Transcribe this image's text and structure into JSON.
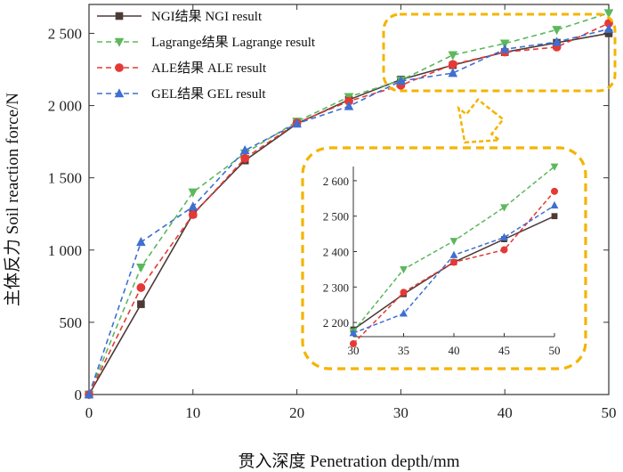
{
  "chart_data": {
    "type": "line",
    "xlabel": "贯入深度 Penetration depth/mm",
    "ylabel": "主体反力 Soil reaction force/N",
    "xlim": [
      0,
      50
    ],
    "ylim": [
      0,
      2700
    ],
    "x_ticks": [
      "0",
      "10",
      "20",
      "30",
      "40",
      "50"
    ],
    "y_ticks": [
      "0",
      "500",
      "1 000",
      "1 500",
      "2 000",
      "2 500"
    ],
    "legend_position": "top-left",
    "x": [
      0,
      5,
      10,
      15,
      20,
      25,
      30,
      35,
      40,
      45,
      50
    ],
    "series": [
      {
        "name": "NGI结果 NGI result",
        "color": "#4d3a36",
        "marker": "square",
        "dash": "solid",
        "values": [
          0,
          625,
          1250,
          1620,
          1875,
          2040,
          2180,
          2280,
          2370,
          2435,
          2500
        ]
      },
      {
        "name": "Lagrange结果 Lagrange result",
        "color": "#5cb85c",
        "marker": "triangle-down",
        "dash": "dashed",
        "values": [
          0,
          880,
          1400,
          1670,
          1890,
          2060,
          2175,
          2350,
          2430,
          2525,
          2640
        ]
      },
      {
        "name": "ALE结果 ALE result",
        "color": "#e53935",
        "marker": "circle",
        "dash": "dashed",
        "values": [
          0,
          740,
          1245,
          1635,
          1880,
          2030,
          2140,
          2285,
          2370,
          2405,
          2570
        ]
      },
      {
        "name": "GEL结果 GEL result",
        "color": "#3f6fd1",
        "marker": "triangle-up",
        "dash": "dashed",
        "values": [
          0,
          1055,
          1300,
          1690,
          1875,
          1995,
          2170,
          2225,
          2390,
          2440,
          2530
        ]
      }
    ],
    "inset": {
      "xlim": [
        30,
        50
      ],
      "ylim": [
        2160,
        2640
      ],
      "x_ticks": [
        "30",
        "35",
        "40",
        "45",
        "50"
      ],
      "y_ticks": [
        "2 200",
        "2 300",
        "2 400",
        "2 500",
        "2 600"
      ]
    },
    "highlight_color": "#f4b400"
  }
}
